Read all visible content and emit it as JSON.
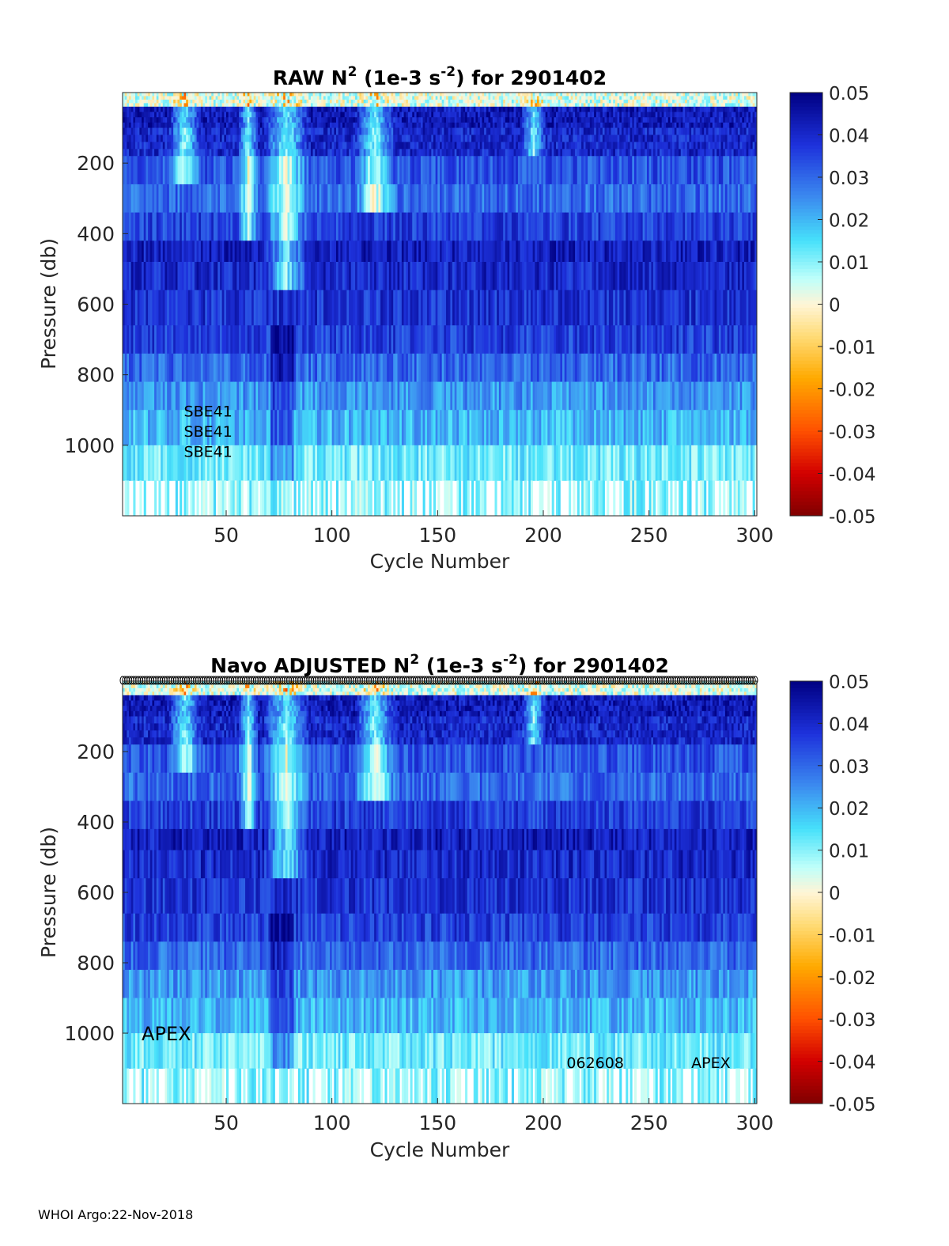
{
  "chart_data": [
    {
      "type": "heatmap",
      "title_prefix": "RAW N",
      "title_sup1": "2",
      "title_mid": " (1e-3 s",
      "title_sup2": "-2",
      "title_suffix": ") for 2901402",
      "xlabel": "Cycle Number",
      "ylabel": "Pressure (db)",
      "xlim": [
        1,
        301
      ],
      "ylim": [
        1200,
        0
      ],
      "xticks": [
        50,
        100,
        150,
        200,
        250,
        300
      ],
      "yticks": [
        200,
        400,
        600,
        800,
        1000
      ],
      "clim": [
        -0.05,
        0.05
      ],
      "colorbar_ticks": [
        "0.05",
        "0.04",
        "0.03",
        "0.02",
        "0.01",
        "0",
        "-0.01",
        "-0.02",
        "-0.03",
        "-0.04",
        "-0.05"
      ],
      "pressure_bins": [
        0,
        40,
        100,
        180,
        260,
        340,
        420,
        480,
        560,
        660,
        740,
        820,
        900,
        1000,
        1100,
        1200
      ],
      "annotations": [
        {
          "text": "SBE41",
          "cycle": 30,
          "pressure": 905
        },
        {
          "text": "SBE41",
          "cycle": 30,
          "pressure": 962
        },
        {
          "text": "SBE41",
          "cycle": 30,
          "pressure": 1019
        }
      ],
      "qc_marker_row": false
    },
    {
      "type": "heatmap",
      "title_prefix": "Navo  ADJUSTED N",
      "title_sup1": "2",
      "title_mid": " (1e-3 s",
      "title_sup2": "-2",
      "title_suffix": ") for 2901402",
      "xlabel": "Cycle Number",
      "ylabel": "Pressure (db)",
      "xlim": [
        1,
        301
      ],
      "ylim": [
        1200,
        0
      ],
      "xticks": [
        50,
        100,
        150,
        200,
        250,
        300
      ],
      "yticks": [
        200,
        400,
        600,
        800,
        1000
      ],
      "clim": [
        -0.05,
        0.05
      ],
      "colorbar_ticks": [
        "0.05",
        "0.04",
        "0.03",
        "0.02",
        "0.01",
        "0",
        "-0.01",
        "-0.02",
        "-0.03",
        "-0.04",
        "-0.05"
      ],
      "pressure_bins": [
        0,
        40,
        100,
        180,
        260,
        340,
        420,
        480,
        560,
        660,
        740,
        820,
        900,
        1000,
        1100,
        1200
      ],
      "annotations": [
        {
          "text": "APEX",
          "cycle": 10,
          "pressure": 1000
        },
        {
          "text": "062608",
          "cycle": 211,
          "pressure": 1085
        },
        {
          "text": "APEX",
          "cycle": 270,
          "pressure": 1085
        }
      ],
      "qc_marker_row": true
    }
  ],
  "footer": "WHOI Argo:22-Nov-2018"
}
